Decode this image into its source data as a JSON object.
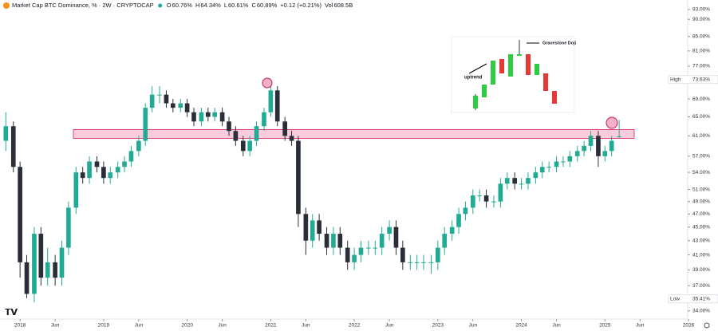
{
  "chart_data": {
    "type": "candlestick",
    "title": "Market Cap BTC Dominance, % · 2W · CRYPTOCAP",
    "header_values": [
      {
        "key": "O",
        "value": "60.76%"
      },
      {
        "key": "H",
        "value": "64.34%"
      },
      {
        "key": "L",
        "value": "60.61%"
      },
      {
        "key": "C",
        "value": "60.89%"
      }
    ],
    "change": "+0.12 (+0.21%)",
    "volume_key": "Vol",
    "volume": "608.5B",
    "log_scale": true,
    "grid": false,
    "up_color": "#22ab94",
    "down_color": "#2a2e39",
    "x": [
      2017.83,
      2017.92,
      2018.0,
      2018.08,
      2018.17,
      2018.25,
      2018.33,
      2018.42,
      2018.5,
      2018.58,
      2018.67,
      2018.75,
      2018.83,
      2018.92,
      2019.0,
      2019.08,
      2019.17,
      2019.25,
      2019.33,
      2019.42,
      2019.5,
      2019.58,
      2019.67,
      2019.75,
      2019.83,
      2019.92,
      2020.0,
      2020.08,
      2020.17,
      2020.25,
      2020.33,
      2020.42,
      2020.5,
      2020.58,
      2020.67,
      2020.75,
      2020.83,
      2020.92,
      2021.0,
      2021.08,
      2021.17,
      2021.25,
      2021.33,
      2021.42,
      2021.5,
      2021.58,
      2021.67,
      2021.75,
      2021.83,
      2021.92,
      2022.0,
      2022.08,
      2022.17,
      2022.25,
      2022.33,
      2022.42,
      2022.5,
      2022.58,
      2022.67,
      2022.75,
      2022.83,
      2022.92,
      2023.0,
      2023.08,
      2023.17,
      2023.25,
      2023.33,
      2023.42,
      2023.5,
      2023.58,
      2023.67,
      2023.75,
      2023.83,
      2023.92,
      2024.0,
      2024.08,
      2024.17,
      2024.25,
      2024.33,
      2024.42,
      2024.5,
      2024.58,
      2024.67,
      2024.75,
      2024.83,
      2024.92,
      2025.0,
      2025.08,
      2025.17
    ],
    "open": [
      60,
      63,
      55,
      40,
      36,
      44,
      38,
      40,
      38,
      42,
      48,
      54,
      53,
      56,
      55,
      53,
      54,
      55,
      56,
      58,
      60,
      67,
      70,
      70,
      68,
      67,
      68,
      66,
      64,
      66,
      65,
      66,
      64,
      62,
      60,
      58,
      60,
      63,
      66,
      71,
      64,
      61,
      60,
      47,
      43,
      46,
      44,
      42,
      44,
      42,
      40,
      41,
      42,
      42,
      42,
      44,
      45,
      42,
      40,
      40,
      40,
      40,
      40,
      42,
      44,
      45,
      47,
      48,
      50,
      50,
      49,
      49,
      52,
      53,
      52,
      52,
      53,
      54,
      55,
      55,
      56,
      56,
      57,
      58,
      59,
      61,
      57,
      58,
      60.76
    ],
    "high": [
      66,
      64,
      56,
      41,
      45,
      45,
      42,
      41,
      43,
      49,
      55,
      55,
      57,
      57,
      56,
      55,
      56,
      57,
      59,
      61,
      68,
      72,
      72,
      71,
      69,
      69,
      69,
      67,
      67,
      67,
      67,
      67,
      65,
      63,
      61,
      61,
      64,
      67,
      72,
      72,
      65,
      62,
      61,
      48,
      47,
      47,
      45,
      45,
      45,
      43,
      42,
      43,
      43,
      43,
      45,
      46,
      46,
      43,
      41,
      41,
      41,
      41,
      43,
      45,
      46,
      48,
      49,
      51,
      51,
      51,
      50,
      53,
      54,
      54,
      53,
      54,
      55,
      56,
      56,
      57,
      57,
      58,
      59,
      60,
      62,
      62,
      59,
      61,
      64.34
    ],
    "low": [
      58,
      54,
      38,
      35.5,
      35,
      37,
      37,
      37,
      37,
      41,
      47,
      52,
      52,
      54,
      52,
      52,
      53,
      54,
      55,
      57,
      59,
      66,
      68,
      67,
      66,
      66,
      65,
      63,
      63,
      64,
      64,
      63,
      61,
      59,
      57,
      57,
      59,
      62,
      65,
      63,
      60,
      59,
      45,
      41,
      42,
      43,
      41,
      41,
      41,
      39,
      39,
      40,
      41,
      41,
      41,
      43,
      41,
      39,
      39,
      39,
      39,
      38.5,
      39,
      41,
      43,
      44,
      46,
      47,
      49,
      48,
      48,
      48,
      51,
      51,
      51,
      51,
      52,
      53,
      54,
      54,
      55,
      55,
      56,
      57,
      58,
      55,
      56,
      57,
      60.61
    ],
    "close": [
      63,
      55,
      40,
      36,
      44,
      38,
      40,
      38,
      42,
      48,
      54,
      53,
      56,
      55,
      53,
      54,
      55,
      56,
      58,
      60,
      67,
      70,
      70,
      68,
      67,
      68,
      66,
      64,
      66,
      65,
      66,
      64,
      62,
      60,
      58,
      60,
      63,
      66,
      71,
      64,
      61,
      60,
      47,
      43,
      46,
      44,
      42,
      44,
      42,
      40,
      41,
      42,
      42,
      42,
      44,
      45,
      42,
      40,
      40,
      40,
      40,
      40,
      42,
      44,
      45,
      47,
      48,
      50,
      50,
      49,
      49,
      52,
      53,
      52,
      52,
      53,
      54,
      55,
      55,
      56,
      56,
      57,
      58,
      59,
      61,
      57,
      58,
      60,
      60.89
    ],
    "xlim": [
      2017.76,
      2025.99
    ],
    "xticks": [
      {
        "value": 2018,
        "label": "2018"
      },
      {
        "value": 2018.42,
        "label": "Jun"
      },
      {
        "value": 2019,
        "label": "2019"
      },
      {
        "value": 2019.42,
        "label": "Jun"
      },
      {
        "value": 2020,
        "label": "2020"
      },
      {
        "value": 2020.42,
        "label": "Jun"
      },
      {
        "value": 2021,
        "label": "2021"
      },
      {
        "value": 2021.42,
        "label": "Jun"
      },
      {
        "value": 2022,
        "label": "2022"
      },
      {
        "value": 2022.42,
        "label": "Jun"
      },
      {
        "value": 2023,
        "label": "2023"
      },
      {
        "value": 2023.42,
        "label": "Jun"
      },
      {
        "value": 2024,
        "label": "2024"
      },
      {
        "value": 2024.42,
        "label": "Jun"
      },
      {
        "value": 2025,
        "label": "2025"
      },
      {
        "value": 2025.42,
        "label": "Jun"
      },
      {
        "value": 2026,
        "label": "2026"
      }
    ],
    "ylim": [
      33.1,
      96.0
    ],
    "yticks": [
      {
        "value": 93,
        "label": "93.00%"
      },
      {
        "value": 90,
        "label": "90.00%"
      },
      {
        "value": 85,
        "label": "85.00%"
      },
      {
        "value": 81,
        "label": "81.00%"
      },
      {
        "value": 77,
        "label": "77.00%"
      },
      {
        "value": 69,
        "label": "69.00%"
      },
      {
        "value": 65,
        "label": "65.00%"
      },
      {
        "value": 61,
        "label": "61.00%"
      },
      {
        "value": 57,
        "label": "57.00%"
      },
      {
        "value": 54,
        "label": "54.00%"
      },
      {
        "value": 51,
        "label": "51.00%"
      },
      {
        "value": 49,
        "label": "49.00%"
      },
      {
        "value": 47,
        "label": "47.00%"
      },
      {
        "value": 45,
        "label": "45.00%"
      },
      {
        "value": 43,
        "label": "43.00%"
      },
      {
        "value": 41,
        "label": "41.00%"
      },
      {
        "value": 39,
        "label": "39.00%"
      },
      {
        "value": 37,
        "label": "37.00%"
      },
      {
        "value": 34,
        "label": "34.00%"
      }
    ],
    "price_markers": [
      {
        "name": "High",
        "value": 73.63,
        "label": "73.63%"
      },
      {
        "name": "Low",
        "value": 35.41,
        "label": "35.41%"
      }
    ],
    "resistance_zone": {
      "low": 60.5,
      "high": 62.3
    },
    "inset": {
      "trend_label": "uptrend",
      "pattern_label": "Gravestone Doji"
    }
  }
}
